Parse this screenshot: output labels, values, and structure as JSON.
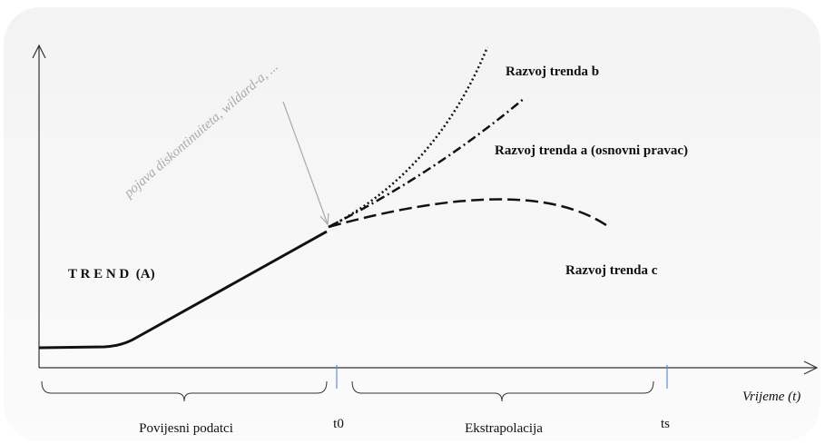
{
  "labels": {
    "trend_b": "Razvoj trenda b",
    "trend_a": "Razvoj trenda a (osnovni pravac)",
    "trend_c": "Razvoj trenda c",
    "trend_main": "T R E N D  (A)",
    "discontinuity": "pojava diskontinuiteta, wildard-a, ...",
    "x_axis": "Vrijeme (t)",
    "history": "Povijesni podatci",
    "t0": "t0",
    "extrapolation": "Ekstrapolacija",
    "ts": "ts"
  }
}
